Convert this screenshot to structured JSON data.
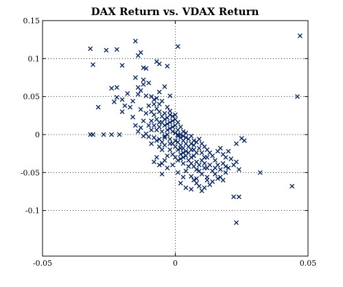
{
  "chart_data": {
    "type": "scatter",
    "title": "DAX Return vs. VDAX Return",
    "xlabel": "",
    "ylabel": "",
    "xlim": [
      -0.05,
      0.05
    ],
    "ylim": [
      -0.16,
      0.15
    ],
    "x_ticks": [
      -0.05,
      0,
      0.05
    ],
    "x_tick_labels": [
      "-0.05",
      "0",
      "0.05"
    ],
    "y_ticks": [
      0.15,
      0.1,
      0.05,
      0,
      -0.05,
      -0.1
    ],
    "y_tick_labels": [
      "0.15",
      "0.1",
      "0.05",
      "0",
      "-0.05",
      "-0.1"
    ],
    "grid": true,
    "legend": "none",
    "marker": "x",
    "color": "#0b2a66",
    "series": [
      {
        "values": [
          [
            -0.032,
            0.113
          ],
          [
            -0.031,
            0.092
          ],
          [
            -0.026,
            0.111
          ],
          [
            -0.022,
            0.112
          ],
          [
            -0.02,
            0.091
          ],
          [
            -0.015,
            0.123
          ],
          [
            -0.014,
            0.104
          ],
          [
            -0.013,
            0.108
          ],
          [
            -0.012,
            0.088
          ],
          [
            -0.011,
            0.087
          ],
          [
            -0.007,
            0.096
          ],
          [
            -0.006,
            0.093
          ],
          [
            -0.003,
            0.09
          ],
          [
            0.001,
            0.116
          ],
          [
            0.047,
            0.13
          ],
          [
            0.046,
            0.05
          ],
          [
            -0.032,
            0.0
          ],
          [
            -0.031,
            0.0
          ],
          [
            -0.027,
            0.0
          ],
          [
            -0.024,
            0.0
          ],
          [
            -0.021,
            0.0
          ],
          [
            -0.029,
            0.036
          ],
          [
            -0.024,
            0.061
          ],
          [
            -0.022,
            0.049
          ],
          [
            -0.02,
            0.046
          ],
          [
            -0.019,
            0.038
          ],
          [
            -0.017,
            0.036
          ],
          [
            -0.022,
            0.062
          ],
          [
            -0.023,
            0.043
          ],
          [
            -0.016,
            0.044
          ],
          [
            -0.014,
            0.053
          ],
          [
            -0.015,
            0.075
          ],
          [
            -0.012,
            0.066
          ],
          [
            -0.01,
            0.068
          ],
          [
            -0.011,
            0.051
          ],
          [
            -0.009,
            0.05
          ],
          [
            -0.008,
            0.046
          ],
          [
            -0.006,
            0.056
          ],
          [
            -0.004,
            0.063
          ],
          [
            -0.002,
            0.051
          ],
          [
            -0.013,
            0.033
          ],
          [
            -0.016,
            0.023
          ],
          [
            -0.012,
            0.018
          ],
          [
            -0.01,
            0.012
          ],
          [
            -0.013,
            0.009
          ],
          [
            -0.011,
            0.001
          ],
          [
            -0.01,
            -0.003
          ],
          [
            -0.012,
            -0.002
          ],
          [
            -0.008,
            0.026
          ],
          [
            -0.007,
            0.034
          ],
          [
            -0.006,
            0.04
          ],
          [
            -0.005,
            0.044
          ],
          [
            -0.004,
            0.028
          ],
          [
            -0.003,
            0.036
          ],
          [
            -0.002,
            0.031
          ],
          [
            -0.001,
            0.024
          ],
          [
            0.0,
            0.02
          ],
          [
            0.001,
            0.016
          ],
          [
            0.002,
            0.01
          ],
          [
            0.003,
            0.004
          ],
          [
            -0.009,
            0.018
          ],
          [
            -0.008,
            0.012
          ],
          [
            -0.007,
            0.006
          ],
          [
            -0.006,
            0.01
          ],
          [
            -0.005,
            0.016
          ],
          [
            -0.004,
            0.02
          ],
          [
            -0.003,
            0.014
          ],
          [
            -0.002,
            0.008
          ],
          [
            -0.001,
            0.004
          ],
          [
            0.0,
            0.002
          ],
          [
            0.001,
            -0.002
          ],
          [
            0.002,
            -0.004
          ],
          [
            -0.006,
            -0.006
          ],
          [
            -0.005,
            -0.01
          ],
          [
            -0.004,
            -0.004
          ],
          [
            -0.003,
            0.0
          ],
          [
            -0.002,
            -0.006
          ],
          [
            -0.001,
            -0.012
          ],
          [
            0.0,
            -0.008
          ],
          [
            0.001,
            -0.01
          ],
          [
            0.002,
            -0.014
          ],
          [
            0.003,
            -0.008
          ],
          [
            0.004,
            -0.012
          ],
          [
            0.005,
            -0.006
          ],
          [
            0.003,
            -0.018
          ],
          [
            0.004,
            -0.022
          ],
          [
            0.005,
            -0.016
          ],
          [
            0.006,
            -0.02
          ],
          [
            0.007,
            -0.014
          ],
          [
            0.008,
            -0.024
          ],
          [
            0.006,
            -0.03
          ],
          [
            0.007,
            -0.028
          ],
          [
            0.009,
            -0.018
          ],
          [
            0.01,
            -0.024
          ],
          [
            0.011,
            -0.03
          ],
          [
            0.008,
            -0.036
          ],
          [
            0.004,
            -0.004
          ],
          [
            0.006,
            -0.002
          ],
          [
            0.007,
            -0.008
          ],
          [
            0.009,
            -0.006
          ],
          [
            0.01,
            -0.012
          ],
          [
            0.011,
            -0.016
          ],
          [
            0.012,
            -0.02
          ],
          [
            0.013,
            -0.024
          ],
          [
            0.012,
            -0.03
          ],
          [
            0.014,
            -0.028
          ],
          [
            0.015,
            -0.034
          ],
          [
            0.016,
            -0.022
          ],
          [
            0.013,
            -0.04
          ],
          [
            0.011,
            -0.044
          ],
          [
            0.009,
            -0.048
          ],
          [
            0.01,
            -0.052
          ],
          [
            0.012,
            -0.056
          ],
          [
            0.008,
            -0.058
          ],
          [
            0.007,
            -0.06
          ],
          [
            0.006,
            -0.055
          ],
          [
            0.004,
            -0.048
          ],
          [
            0.005,
            -0.042
          ],
          [
            0.003,
            -0.038
          ],
          [
            0.002,
            -0.032
          ],
          [
            -0.002,
            -0.02
          ],
          [
            -0.001,
            -0.026
          ],
          [
            0.0,
            -0.03
          ],
          [
            0.001,
            -0.034
          ],
          [
            -0.003,
            -0.028
          ],
          [
            -0.004,
            -0.034
          ],
          [
            -0.005,
            -0.038
          ],
          [
            -0.003,
            -0.044
          ],
          [
            -0.005,
            -0.052
          ],
          [
            -0.006,
            -0.04
          ],
          [
            -0.008,
            -0.036
          ],
          [
            -0.007,
            -0.03
          ],
          [
            0.016,
            -0.04
          ],
          [
            0.017,
            -0.046
          ],
          [
            0.018,
            -0.038
          ],
          [
            0.019,
            -0.05
          ],
          [
            0.017,
            -0.056
          ],
          [
            0.015,
            -0.052
          ],
          [
            0.014,
            -0.062
          ],
          [
            0.013,
            -0.066
          ],
          [
            0.011,
            -0.07
          ],
          [
            0.009,
            -0.068
          ],
          [
            0.01,
            -0.074
          ],
          [
            0.006,
            -0.072
          ],
          [
            0.002,
            -0.064
          ],
          [
            0.003,
            -0.056
          ],
          [
            0.001,
            -0.05
          ],
          [
            0.004,
            -0.07
          ],
          [
            0.02,
            -0.044
          ],
          [
            0.021,
            -0.032
          ],
          [
            0.022,
            -0.04
          ],
          [
            0.023,
            -0.036
          ],
          [
            0.018,
            -0.026
          ],
          [
            0.019,
            -0.03
          ],
          [
            0.02,
            -0.022
          ],
          [
            0.017,
            -0.018
          ],
          [
            0.023,
            -0.012
          ],
          [
            0.025,
            -0.005
          ],
          [
            0.026,
            -0.008
          ],
          [
            0.024,
            -0.046
          ],
          [
            0.032,
            -0.05
          ],
          [
            0.022,
            -0.082
          ],
          [
            0.024,
            -0.082
          ],
          [
            0.044,
            -0.068
          ],
          [
            0.023,
            -0.116
          ],
          [
            0.012,
            -0.06
          ],
          [
            0.008,
            -0.064
          ],
          [
            -0.001,
            -0.04
          ],
          [
            -0.011,
            0.028
          ],
          [
            -0.01,
            0.038
          ],
          [
            -0.009,
            0.03
          ],
          [
            -0.008,
            0.04
          ],
          [
            -0.007,
            0.048
          ],
          [
            -0.006,
            0.03
          ],
          [
            -0.005,
            0.024
          ],
          [
            -0.004,
            0.012
          ],
          [
            -0.003,
            0.006
          ],
          [
            -0.002,
            0.016
          ],
          [
            -0.001,
            0.01
          ],
          [
            0.0,
            0.012
          ],
          [
            0.001,
            0.006
          ],
          [
            0.002,
            0.0
          ],
          [
            0.003,
            -0.002
          ],
          [
            0.004,
            0.002
          ],
          [
            -0.007,
            0.02
          ],
          [
            -0.006,
            0.016
          ],
          [
            -0.005,
            0.004
          ],
          [
            -0.004,
            -0.002
          ],
          [
            -0.003,
            0.022
          ],
          [
            -0.002,
            0.026
          ],
          [
            -0.001,
            0.018
          ],
          [
            0.0,
            0.026
          ],
          [
            0.001,
            0.0
          ],
          [
            0.002,
            -0.018
          ],
          [
            0.003,
            -0.024
          ],
          [
            0.004,
            -0.028
          ],
          [
            0.005,
            -0.024
          ],
          [
            0.006,
            -0.012
          ],
          [
            0.007,
            -0.02
          ],
          [
            0.008,
            -0.01
          ],
          [
            -0.014,
            0.062
          ],
          [
            -0.013,
            0.058
          ],
          [
            -0.012,
            0.072
          ],
          [
            -0.018,
            0.054
          ],
          [
            -0.02,
            0.03
          ],
          [
            -0.015,
            0.012
          ],
          [
            -0.014,
            0.004
          ],
          [
            -0.009,
            0.006
          ],
          [
            -0.008,
            -0.004
          ],
          [
            -0.007,
            -0.008
          ],
          [
            -0.009,
            -0.012
          ],
          [
            -0.006,
            -0.016
          ],
          [
            -0.005,
            -0.02
          ],
          [
            -0.004,
            -0.014
          ],
          [
            -0.002,
            -0.012
          ],
          [
            0.0,
            -0.016
          ],
          [
            0.001,
            -0.02
          ],
          [
            0.002,
            -0.026
          ],
          [
            0.003,
            -0.03
          ],
          [
            0.005,
            -0.034
          ],
          [
            0.006,
            -0.038
          ],
          [
            0.007,
            -0.042
          ],
          [
            0.008,
            -0.046
          ],
          [
            0.009,
            -0.04
          ],
          [
            0.01,
            -0.034
          ],
          [
            0.011,
            -0.038
          ],
          [
            0.012,
            -0.044
          ],
          [
            0.014,
            -0.048
          ],
          [
            0.015,
            -0.044
          ],
          [
            0.016,
            -0.058
          ],
          [
            0.018,
            -0.06
          ],
          [
            0.019,
            -0.042
          ]
        ]
      }
    ]
  }
}
